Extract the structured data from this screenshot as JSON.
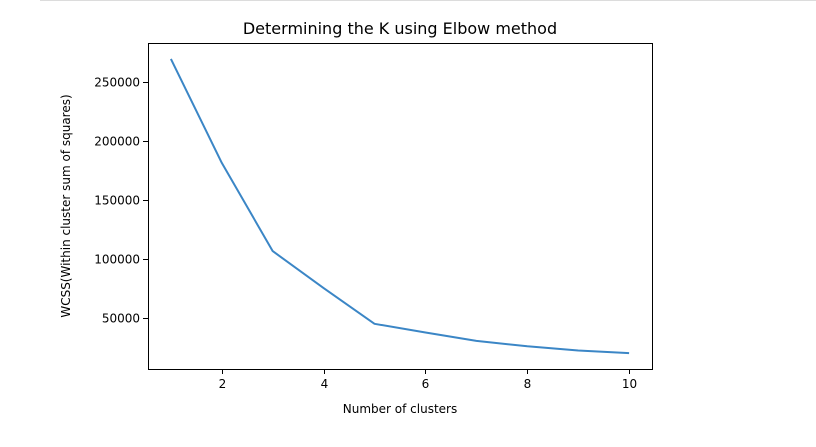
{
  "chart_data": {
    "type": "line",
    "title": "Determining the K using Elbow method",
    "xlabel": "Number of clusters",
    "ylabel": "WCSS(Within cluster sum of squares)",
    "x": [
      1,
      2,
      3,
      4,
      5,
      6,
      7,
      8,
      9,
      10
    ],
    "series": [
      {
        "values": [
          269600,
          181300,
          106400,
          75000,
          44700,
          37300,
          30200,
          25600,
          22000,
          19800
        ]
      }
    ],
    "xlim": [
      0.55,
      10.45
    ],
    "ylim": [
      6300,
      283100
    ],
    "xticks": [
      2,
      4,
      6,
      8,
      10
    ],
    "yticks": [
      50000,
      100000,
      150000,
      200000,
      250000
    ],
    "grid": false,
    "colors": {
      "line": "#3b86c6",
      "axes": "#000000"
    }
  }
}
